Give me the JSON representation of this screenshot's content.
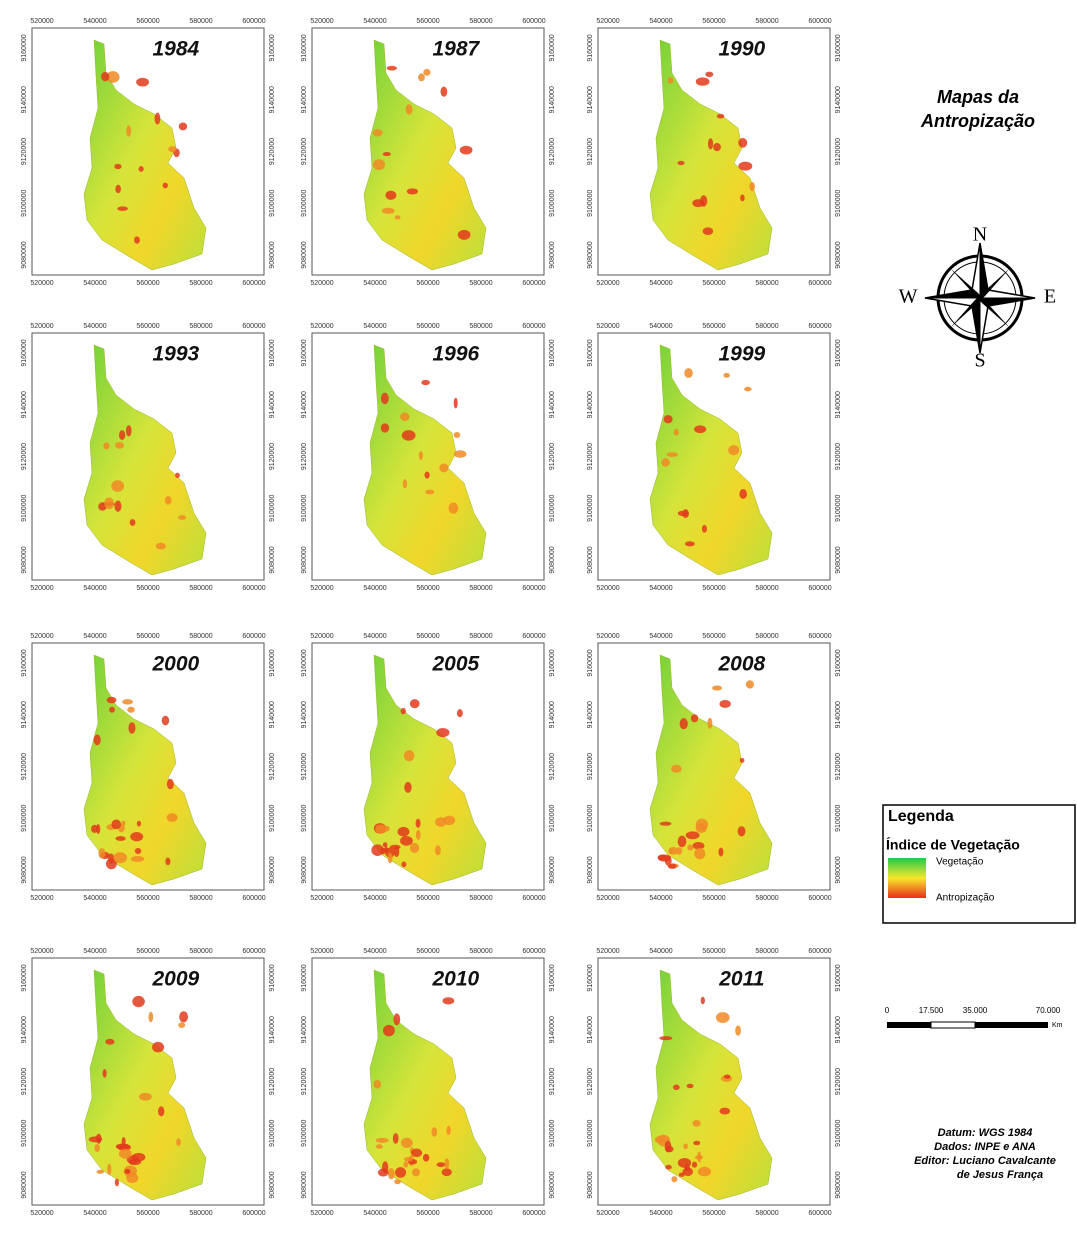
{
  "title_lines": [
    "Mapas da",
    "Antropização"
  ],
  "x_ticks": [
    "520000",
    "540000",
    "560000",
    "580000",
    "600000"
  ],
  "y_ticks": [
    "9160000",
    "9140000",
    "9120000",
    "9100000",
    "9080000"
  ],
  "panels": [
    {
      "year": "1984"
    },
    {
      "year": "1987"
    },
    {
      "year": "1990"
    },
    {
      "year": "1993"
    },
    {
      "year": "1996"
    },
    {
      "year": "1999"
    },
    {
      "year": "2000"
    },
    {
      "year": "2005"
    },
    {
      "year": "2008"
    },
    {
      "year": "2009"
    },
    {
      "year": "2010"
    },
    {
      "year": "2011"
    }
  ],
  "compass": {
    "n": "N",
    "s": "S",
    "w": "W",
    "e": "E"
  },
  "legend": {
    "title": "Legenda",
    "subtitle": "Índice de Vegetação",
    "high": "Vegetação",
    "low": "Antropização"
  },
  "scale": {
    "labels": [
      "0",
      "17.500",
      "35.000",
      "70.000"
    ],
    "unit": "Km"
  },
  "credits": [
    "Datum: WGS 1984",
    "Dados: INPE e ANA",
    "Editor: Luciano Cavalcante",
    "de Jesus França"
  ]
}
